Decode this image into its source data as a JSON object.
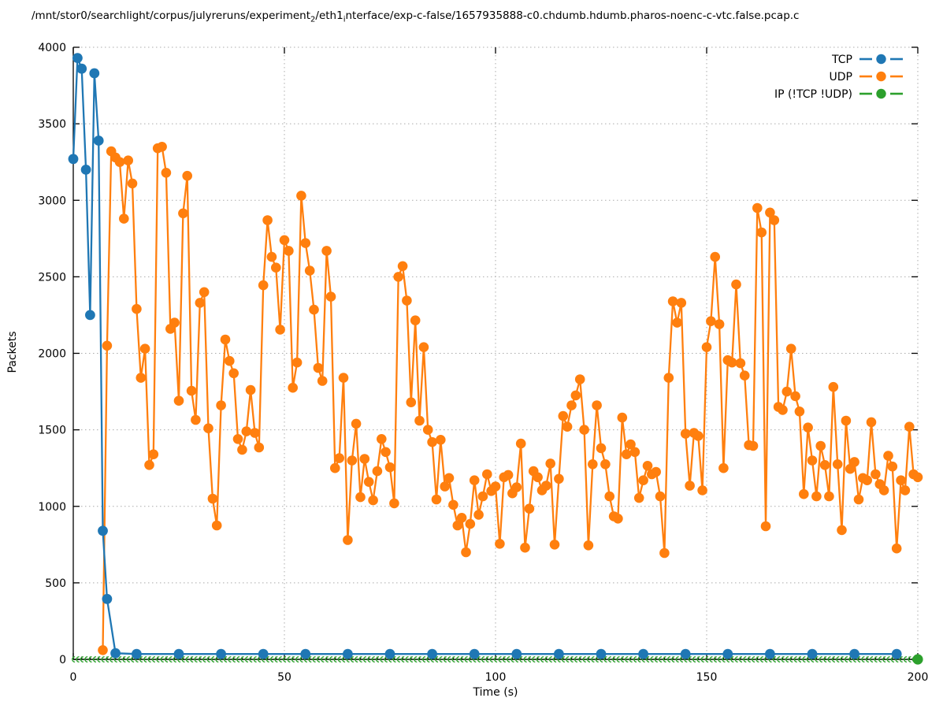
{
  "title": {
    "segments": [
      {
        "t": "/mnt/stor0/searchlight/corpus/julyreruns/experiment"
      },
      {
        "sub": "2"
      },
      {
        "t": "/eth1"
      },
      {
        "sub": "i"
      },
      {
        "t": "nterface/exp-c-false/1657935888-c0.chdumb.hdumb.pharos-noenc-c-vtc.false.pcap.c"
      }
    ]
  },
  "legend": {
    "position": "top-right",
    "items": [
      {
        "label": "TCP",
        "color": "#1f77b4"
      },
      {
        "label": "UDP",
        "color": "#ff7f0e"
      },
      {
        "label": "IP (!TCP  !UDP)",
        "color": "#2ca02c"
      }
    ]
  },
  "chart_data": {
    "type": "line",
    "title": "/mnt/stor0/searchlight/corpus/julyreruns/experiment_2/eth1_interface/exp-c-false/1657935888-c0.chdumb.hdumb.pharos-noenc-c-vtc.false.pcap.c",
    "xlabel": "Time (s)",
    "ylabel": "Packets",
    "xlim": [
      0,
      200
    ],
    "ylim": [
      0,
      4000
    ],
    "xticks": [
      0,
      50,
      100,
      150,
      200
    ],
    "yticks": [
      0,
      500,
      1000,
      1500,
      2000,
      2500,
      3000,
      3500,
      4000
    ],
    "grid": true,
    "grid_style": "dotted",
    "marker": "filled-circle",
    "series": [
      {
        "name": "TCP",
        "color": "#1f77b4",
        "style": "linespoints",
        "x": [
          0,
          1,
          2,
          3,
          4,
          5,
          6,
          7,
          8,
          10,
          15,
          25,
          35,
          45,
          55,
          65,
          75,
          85,
          95,
          105,
          115,
          125,
          135,
          145,
          155,
          165,
          175,
          185,
          195
        ],
        "y": [
          3270,
          3930,
          3860,
          3200,
          2250,
          3830,
          3390,
          840,
          395,
          40,
          35,
          35,
          35,
          35,
          35,
          35,
          35,
          35,
          35,
          35,
          35,
          35,
          35,
          35,
          35,
          35,
          35,
          35,
          35
        ]
      },
      {
        "name": "UDP",
        "color": "#ff7f0e",
        "style": "linespoints",
        "x_start": 7,
        "x_step": 1,
        "y": [
          60,
          2050,
          3320,
          3280,
          3250,
          2880,
          3260,
          3110,
          2290,
          1840,
          2030,
          1270,
          1340,
          3340,
          3350,
          3180,
          2160,
          2200,
          1690,
          2915,
          3160,
          1755,
          1565,
          2330,
          2400,
          1510,
          1050,
          875,
          1660,
          2090,
          1950,
          1870,
          1440,
          1370,
          1490,
          1760,
          1480,
          1385,
          2445,
          2870,
          2630,
          2560,
          2155,
          2740,
          2670,
          1775,
          1940,
          3030,
          2720,
          2540,
          2285,
          1905,
          1820,
          2670,
          2370,
          1250,
          1315,
          1840,
          780,
          1300,
          1540,
          1060,
          1310,
          1160,
          1040,
          1230,
          1440,
          1355,
          1255,
          1020,
          2500,
          2570,
          2345,
          1680,
          2215,
          1560,
          2040,
          1500,
          1420,
          1045,
          1435,
          1130,
          1185,
          1010,
          875,
          925,
          700,
          885,
          1170,
          945,
          1065,
          1210,
          1100,
          1130,
          755,
          1190,
          1205,
          1085,
          1125,
          1410,
          730,
          985,
          1230,
          1190,
          1105,
          1135,
          1280,
          750,
          1180,
          1590,
          1520,
          1660,
          1725,
          1830,
          1500,
          745,
          1275,
          1660,
          1380,
          1275,
          1065,
          935,
          920,
          1580,
          1340,
          1405,
          1355,
          1055,
          1170,
          1265,
          1210,
          1225,
          1065,
          695,
          1840,
          2340,
          2200,
          2330,
          1475,
          1135,
          1480,
          1460,
          1105,
          2040,
          2210,
          2630,
          2190,
          1250,
          1955,
          1940,
          2450,
          1935,
          1855,
          1400,
          1395,
          2950,
          2790,
          870,
          2920,
          2870,
          1650,
          1630,
          1750,
          2030,
          1720,
          1620,
          1080,
          1515,
          1300,
          1065,
          1395,
          1270,
          1065,
          1780,
          1275,
          845,
          1560,
          1245,
          1290,
          1045,
          1185,
          1170,
          1550,
          1210,
          1145,
          1105,
          1330,
          1260,
          725,
          1170,
          1105,
          1520,
          1210,
          1190
        ]
      },
      {
        "name": "IP (!TCP  !UDP)",
        "color": "#2ca02c",
        "style": "linespoints",
        "y_constant": 0,
        "x_start": 0,
        "x_end": 200,
        "x_step": 1,
        "final_point_emphasis": true
      }
    ]
  }
}
